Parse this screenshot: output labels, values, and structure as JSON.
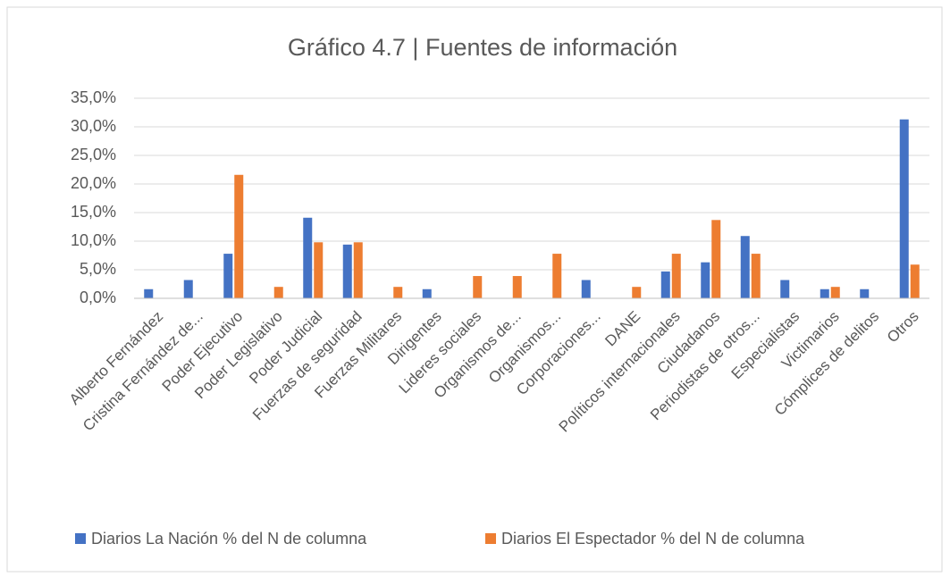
{
  "chart_data": {
    "type": "bar",
    "title": "Gráfico 4.7 | Fuentes de información",
    "categories": [
      "Alberto Fernández",
      "Cristina Fernández de...",
      "Poder Ejecutivo",
      "Poder Legislativo",
      "Poder Judicial",
      "Fuerzas de seguridad",
      "Fuerzas Militares",
      "Dirigentes",
      "Lideres sociales",
      "Organismos de...",
      "Organismos...",
      "Corporaciones...",
      "DANE",
      "Políticos internacionales",
      "Ciudadanos",
      "Periodistas de otros...",
      "Especialistas",
      "Victimarios",
      "Cómplices de delitos",
      "Otros"
    ],
    "series": [
      {
        "name": "Diarios La Nación % del N de columna",
        "color": "#4472c4",
        "values": [
          1.6,
          3.2,
          7.8,
          0,
          14.1,
          9.4,
          0,
          1.6,
          0,
          0,
          0,
          3.2,
          0,
          4.7,
          6.3,
          10.9,
          3.2,
          1.6,
          1.6,
          31.3
        ]
      },
      {
        "name": "Diarios El Espectador % del N de columna",
        "color": "#ed7d31",
        "values": [
          0,
          0,
          21.6,
          2.0,
          9.8,
          9.8,
          2.0,
          0,
          3.9,
          3.9,
          7.8,
          0,
          2.0,
          7.8,
          13.7,
          7.8,
          0,
          2.0,
          0,
          5.9
        ]
      }
    ],
    "ylim": [
      0,
      35
    ],
    "yticks": [
      {
        "value": 0,
        "label": "0,0%"
      },
      {
        "value": 5,
        "label": "5,0%"
      },
      {
        "value": 10,
        "label": "10,0%"
      },
      {
        "value": 15,
        "label": "15,0%"
      },
      {
        "value": 20,
        "label": "20,0%"
      },
      {
        "value": 25,
        "label": "25,0%"
      },
      {
        "value": 30,
        "label": "30,0%"
      },
      {
        "value": 35,
        "label": "35,0%"
      }
    ],
    "grid": true,
    "legend": "bottom"
  }
}
